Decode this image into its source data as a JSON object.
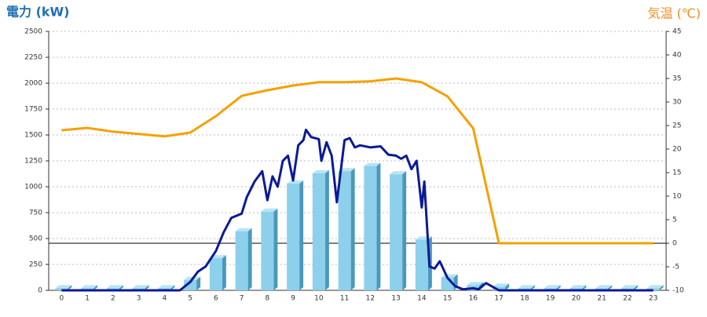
{
  "chart_data": {
    "type": "bar",
    "y_label": "電力 (kW)",
    "y2_label": "気温 (℃)",
    "categories": [
      "0",
      "1",
      "2",
      "3",
      "4",
      "5",
      "6",
      "7",
      "8",
      "9",
      "10",
      "11",
      "12",
      "13",
      "14",
      "15",
      "16",
      "17",
      "18",
      "19",
      "20",
      "21",
      "22",
      "23"
    ],
    "series": [
      {
        "name": "hourly-power",
        "type": "bar",
        "color": "#8dd0ec",
        "values": [
          20,
          20,
          20,
          20,
          20,
          100,
          310,
          570,
          760,
          1030,
          1130,
          1150,
          1200,
          1120,
          490,
          125,
          50,
          35,
          20,
          20,
          20,
          20,
          20,
          20
        ]
      },
      {
        "name": "power",
        "type": "line",
        "color": "#0a1a96",
        "x": [
          0,
          4.6,
          5,
          5.3,
          5.6,
          6,
          6.3,
          6.6,
          7,
          7.2,
          7.5,
          7.8,
          8,
          8.2,
          8.4,
          8.6,
          8.8,
          9,
          9.2,
          9.4,
          9.5,
          9.7,
          10,
          10.1,
          10.3,
          10.5,
          10.7,
          11,
          11.2,
          11.4,
          11.6,
          12,
          12.4,
          12.7,
          13,
          13.2,
          13.4,
          13.6,
          13.8,
          14,
          14.1,
          14.3,
          14.5,
          14.7,
          15,
          15.3,
          15.6,
          16,
          16.2,
          16.5,
          17,
          23
        ],
        "values": [
          0,
          0,
          80,
          180,
          230,
          380,
          560,
          700,
          740,
          900,
          1050,
          1150,
          870,
          1100,
          1000,
          1250,
          1300,
          1060,
          1400,
          1450,
          1550,
          1480,
          1460,
          1250,
          1430,
          1300,
          850,
          1450,
          1470,
          1380,
          1400,
          1380,
          1390,
          1310,
          1300,
          1270,
          1300,
          1170,
          1250,
          800,
          1050,
          230,
          210,
          280,
          120,
          40,
          10,
          20,
          10,
          70,
          0,
          0
        ]
      },
      {
        "name": "temperature",
        "type": "line",
        "axis": "y2",
        "color": "#f5a000",
        "values": [
          24,
          24.5,
          23.7,
          23.2,
          22.7,
          23.5,
          27,
          31.3,
          32.5,
          33.5,
          34.2,
          34.2,
          34.4,
          35,
          34.2,
          31.2,
          24.4,
          0,
          0,
          0,
          0,
          0,
          0,
          0
        ]
      }
    ],
    "ylim": [
      0,
      2500
    ],
    "yticks": [
      0,
      250,
      500,
      750,
      1000,
      1250,
      1500,
      1750,
      2000,
      2250,
      2500
    ],
    "y2lim": [
      -10,
      45
    ],
    "y2ticks": [
      -10,
      -5,
      0,
      5,
      10,
      15,
      20,
      25,
      30,
      35,
      40,
      45
    ],
    "y2_baseline": 0,
    "grid": true
  }
}
